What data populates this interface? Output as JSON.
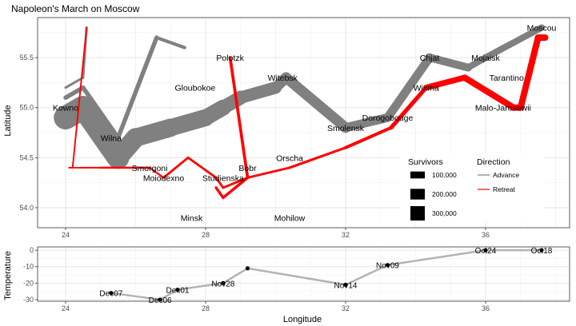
{
  "chart_data": [
    {
      "type": "line",
      "title": "Napoleon's March on Moscow",
      "xlabel": "",
      "ylabel": "Latitude",
      "xlim": [
        23.2,
        38.4
      ],
      "ylim": [
        53.8,
        55.9
      ],
      "x_ticks": [
        24,
        28,
        32,
        36
      ],
      "y_ticks": [
        54.0,
        54.5,
        55.0,
        55.5
      ],
      "y_tick_labels": [
        "54.0",
        "54.5",
        "55.0",
        "55.5"
      ],
      "grid": true,
      "series": [
        {
          "name": "Advance",
          "color": "#808080",
          "points": [
            {
              "x": 24.0,
              "y": 54.9,
              "survivors": 422000
            },
            {
              "x": 24.5,
              "y": 55.0,
              "survivors": 400000
            },
            {
              "x": 25.5,
              "y": 54.5,
              "survivors": 340000
            },
            {
              "x": 26.0,
              "y": 54.7,
              "survivors": 320000
            },
            {
              "x": 27.0,
              "y": 54.8,
              "survivors": 300000
            },
            {
              "x": 28.0,
              "y": 54.9,
              "survivors": 280000
            },
            {
              "x": 28.5,
              "y": 55.0,
              "survivors": 240000
            },
            {
              "x": 29.0,
              "y": 55.1,
              "survivors": 210000
            },
            {
              "x": 30.0,
              "y": 55.2,
              "survivors": 180000
            },
            {
              "x": 30.3,
              "y": 55.3,
              "survivors": 175000
            },
            {
              "x": 32.0,
              "y": 54.8,
              "survivors": 145000
            },
            {
              "x": 33.2,
              "y": 54.9,
              "survivors": 140000
            },
            {
              "x": 34.4,
              "y": 55.5,
              "survivors": 127100
            },
            {
              "x": 35.5,
              "y": 55.4,
              "survivors": 100000
            },
            {
              "x": 36.0,
              "y": 55.5,
              "survivors": 100000
            },
            {
              "x": 37.6,
              "y": 55.8,
              "survivors": 100000
            }
          ]
        },
        {
          "name": "Retreat",
          "color": "#ff0000",
          "points": [
            {
              "x": 37.7,
              "y": 55.7,
              "survivors": 100000
            },
            {
              "x": 37.5,
              "y": 55.7,
              "survivors": 98000
            },
            {
              "x": 37.0,
              "y": 55.0,
              "survivors": 97000
            },
            {
              "x": 36.8,
              "y": 55.0,
              "survivors": 96000
            },
            {
              "x": 35.4,
              "y": 55.3,
              "survivors": 87000
            },
            {
              "x": 34.3,
              "y": 55.2,
              "survivors": 55000
            },
            {
              "x": 33.3,
              "y": 54.8,
              "survivors": 37000
            },
            {
              "x": 32.0,
              "y": 54.6,
              "survivors": 24000
            },
            {
              "x": 30.4,
              "y": 54.4,
              "survivors": 20000
            },
            {
              "x": 29.2,
              "y": 54.3,
              "survivors": 20000
            },
            {
              "x": 28.5,
              "y": 54.2,
              "survivors": 20000
            },
            {
              "x": 28.3,
              "y": 54.3,
              "survivors": 20000
            },
            {
              "x": 27.5,
              "y": 54.5,
              "survivors": 20000
            },
            {
              "x": 26.8,
              "y": 54.3,
              "survivors": 12000
            },
            {
              "x": 26.4,
              "y": 54.4,
              "survivors": 14000
            },
            {
              "x": 25.0,
              "y": 54.4,
              "survivors": 8000
            },
            {
              "x": 24.4,
              "y": 54.4,
              "survivors": 4000
            },
            {
              "x": 24.2,
              "y": 54.4,
              "survivors": 4000
            },
            {
              "x": 24.1,
              "y": 54.4,
              "survivors": 4000
            }
          ]
        },
        {
          "name": "Advance",
          "color": "#808080",
          "points": [
            {
              "x": 24.0,
              "y": 55.1,
              "survivors": 60000
            },
            {
              "x": 24.5,
              "y": 55.2,
              "survivors": 60000
            },
            {
              "x": 25.5,
              "y": 54.7,
              "survivors": 60000
            },
            {
              "x": 26.6,
              "y": 55.7,
              "survivors": 40000
            },
            {
              "x": 27.4,
              "y": 55.6,
              "survivors": 33000
            }
          ]
        },
        {
          "name": "Retreat",
          "color": "#ff0000",
          "points": [
            {
              "x": 28.7,
              "y": 55.5,
              "survivors": 33000
            },
            {
              "x": 29.2,
              "y": 54.3,
              "survivors": 30000
            },
            {
              "x": 28.5,
              "y": 54.1,
              "survivors": 28000
            },
            {
              "x": 28.3,
              "y": 54.2,
              "survivors": 28000
            }
          ]
        },
        {
          "name": "Advance",
          "color": "#808080",
          "points": [
            {
              "x": 24.0,
              "y": 55.2,
              "survivors": 22000
            },
            {
              "x": 24.5,
              "y": 55.3,
              "survivors": 22000
            },
            {
              "x": 24.6,
              "y": 55.8,
              "survivors": 6000
            }
          ]
        },
        {
          "name": "Retreat",
          "color": "#ff0000",
          "points": [
            {
              "x": 24.6,
              "y": 55.8,
              "survivors": 6000
            },
            {
              "x": 24.2,
              "y": 54.4,
              "survivors": 6000
            },
            {
              "x": 24.1,
              "y": 54.4,
              "survivors": 6000
            }
          ]
        }
      ],
      "cities": [
        {
          "name": "Kowno",
          "x": 24.0,
          "y": 55.0
        },
        {
          "name": "Wilna",
          "x": 25.3,
          "y": 54.7
        },
        {
          "name": "Smorgoni",
          "x": 26.4,
          "y": 54.4
        },
        {
          "name": "Moiodexno",
          "x": 26.8,
          "y": 54.3
        },
        {
          "name": "Gloubokoe",
          "x": 27.7,
          "y": 55.2
        },
        {
          "name": "Minsk",
          "x": 27.6,
          "y": 53.9
        },
        {
          "name": "Studienska",
          "x": 28.5,
          "y": 54.3
        },
        {
          "name": "Polotzk",
          "x": 28.7,
          "y": 55.5
        },
        {
          "name": "Bobr",
          "x": 29.2,
          "y": 54.4
        },
        {
          "name": "Witebsk",
          "x": 30.2,
          "y": 55.3
        },
        {
          "name": "Orscha",
          "x": 30.4,
          "y": 54.5
        },
        {
          "name": "Mohilow",
          "x": 30.4,
          "y": 53.9
        },
        {
          "name": "Smolensk",
          "x": 32.0,
          "y": 54.8
        },
        {
          "name": "Dorogobouge",
          "x": 33.2,
          "y": 54.9
        },
        {
          "name": "Wixma",
          "x": 34.3,
          "y": 55.2
        },
        {
          "name": "Chjat",
          "x": 34.4,
          "y": 55.5
        },
        {
          "name": "Mojaisk",
          "x": 36.0,
          "y": 55.5
        },
        {
          "name": "Moscou",
          "x": 37.6,
          "y": 55.8
        },
        {
          "name": "Tarantino",
          "x": 36.6,
          "y": 55.3
        },
        {
          "name": "Malo-Jarosewii",
          "x": 36.5,
          "y": 55.0
        }
      ],
      "legend": {
        "survivors_title": "Survivors",
        "survivors_entries": [
          {
            "label": "100,000",
            "value": 100000
          },
          {
            "label": "200,000",
            "value": 200000
          },
          {
            "label": "300,000",
            "value": 300000
          }
        ],
        "direction_title": "Direction",
        "direction_entries": [
          {
            "label": "Advance",
            "color": "#808080"
          },
          {
            "label": "Retreat",
            "color": "#ff0000"
          }
        ],
        "placement": "bottom-right inside"
      }
    },
    {
      "type": "line",
      "xlabel": "Longitude",
      "ylabel": "Temperature",
      "xlim": [
        23.2,
        38.4
      ],
      "ylim": [
        -31,
        2
      ],
      "x_ticks": [
        24,
        28,
        32,
        36
      ],
      "y_ticks": [
        0,
        -10,
        -20,
        -30
      ],
      "y_tick_labels": [
        "0",
        "-10",
        "-20",
        "-30"
      ],
      "line_color": "#b3b3b3",
      "grid": true,
      "points": [
        {
          "x": 37.6,
          "y": 0,
          "label": "Oct18"
        },
        {
          "x": 36.0,
          "y": 0,
          "label": "Oct24"
        },
        {
          "x": 33.2,
          "y": -9,
          "label": "Nov09"
        },
        {
          "x": 32.0,
          "y": -21,
          "label": "Nov14"
        },
        {
          "x": 29.2,
          "y": -11,
          "label": ""
        },
        {
          "x": 28.5,
          "y": -20,
          "label": "Nov28"
        },
        {
          "x": 27.2,
          "y": -24,
          "label": "Dec01"
        },
        {
          "x": 26.7,
          "y": -30,
          "label": "Dec06"
        },
        {
          "x": 25.3,
          "y": -26,
          "label": "Dec07"
        }
      ]
    }
  ]
}
